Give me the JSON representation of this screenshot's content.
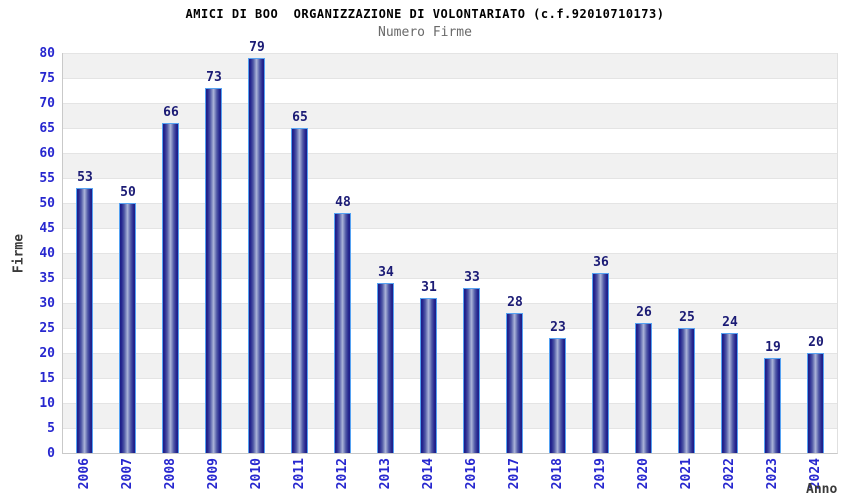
{
  "chart_data": {
    "type": "bar",
    "title": "AMICI DI BOO  ORGANIZZAZIONE DI VOLONTARIATO (c.f.92010710173)",
    "subtitle": "Numero Firme",
    "xlabel": "Anno",
    "ylabel": "Firme",
    "categories": [
      "2006",
      "2007",
      "2008",
      "2009",
      "2010",
      "2011",
      "2012",
      "2013",
      "2014",
      "2016",
      "2017",
      "2018",
      "2019",
      "2020",
      "2021",
      "2022",
      "2023",
      "2024"
    ],
    "values": [
      53,
      50,
      66,
      73,
      79,
      65,
      48,
      34,
      31,
      33,
      28,
      23,
      36,
      26,
      25,
      24,
      19,
      20
    ],
    "ylim": [
      0,
      80
    ],
    "ytick_step": 5,
    "grid": "alternating horizontal bands every 5 units, gray band directly above 5,15,25,...",
    "legend": "none",
    "bar_value_labels": true,
    "colors": {
      "tick_label": "#2727cf",
      "value_label": "#1b1b75",
      "title": "#000000",
      "subtitle": "#6a6a6a",
      "axis_title": "#3a3a3a",
      "bar_dark": "#1d1d88",
      "bar_light": "#aeb6da",
      "bar_border": "#55a2f2",
      "band_gray": "#f1f1f1",
      "band_white": "#ffffff",
      "gridline": "#e4e4e4",
      "axis_line": "#c9c9c9"
    }
  }
}
